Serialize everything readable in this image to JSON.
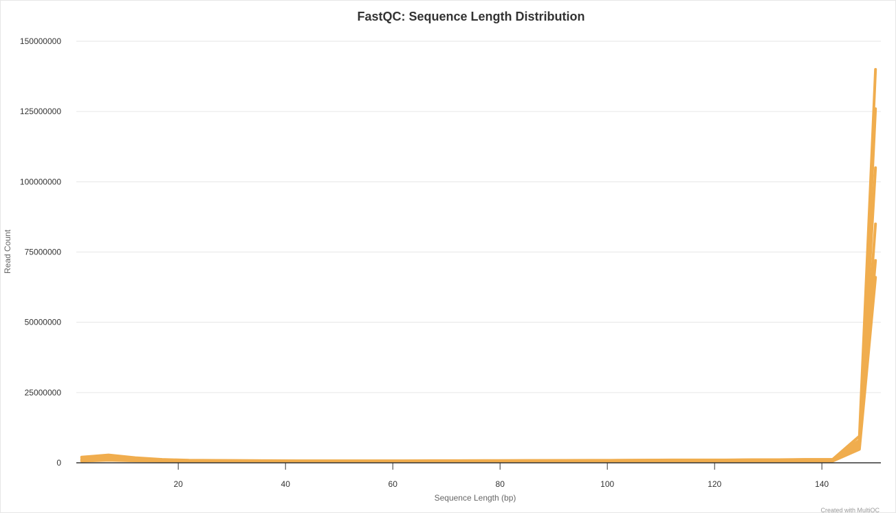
{
  "chart_data": {
    "type": "line",
    "title": "FastQC: Sequence Length Distribution",
    "xlabel": "Sequence Length (bp)",
    "ylabel": "Read Count",
    "xlim": [
      1,
      151
    ],
    "ylim": [
      0,
      150000000
    ],
    "x_ticks": [
      20,
      40,
      60,
      80,
      100,
      120,
      140
    ],
    "y_ticks": [
      0,
      25000000,
      50000000,
      75000000,
      100000000,
      125000000,
      150000000
    ],
    "grid": true,
    "line_color": "#f0ad4e",
    "credit": "Created with MultiQC",
    "x": [
      2,
      7,
      12,
      17,
      22,
      27,
      32,
      37,
      42,
      47,
      52,
      57,
      62,
      67,
      72,
      77,
      82,
      87,
      92,
      97,
      102,
      107,
      112,
      117,
      122,
      127,
      132,
      137,
      142,
      147,
      150
    ],
    "series": [
      {
        "values": [
          2000000,
          2800000,
          1800000,
          1200000,
          900000,
          850000,
          800000,
          750000,
          700000,
          700000,
          700000,
          700000,
          720000,
          750000,
          750000,
          780000,
          800000,
          820000,
          850000,
          880000,
          900000,
          950000,
          1000000,
          1000000,
          1000000,
          1100000,
          1100000,
          1200000,
          1200000,
          9500000,
          140000000
        ]
      },
      {
        "values": [
          1800000,
          2500000,
          1600000,
          1100000,
          850000,
          800000,
          750000,
          700000,
          650000,
          650000,
          650000,
          650000,
          680000,
          700000,
          700000,
          720000,
          750000,
          780000,
          800000,
          830000,
          850000,
          900000,
          950000,
          950000,
          950000,
          1050000,
          1050000,
          1150000,
          1150000,
          8000000,
          126000000
        ]
      },
      {
        "values": [
          1200000,
          1800000,
          1200000,
          900000,
          700000,
          650000,
          600000,
          580000,
          550000,
          550000,
          550000,
          560000,
          580000,
          600000,
          600000,
          620000,
          650000,
          680000,
          700000,
          720000,
          750000,
          780000,
          800000,
          800000,
          820000,
          850000,
          880000,
          900000,
          950000,
          7000000,
          105000000
        ]
      },
      {
        "values": [
          900000,
          1400000,
          1000000,
          800000,
          600000,
          560000,
          520000,
          500000,
          480000,
          480000,
          480000,
          490000,
          500000,
          520000,
          520000,
          540000,
          560000,
          580000,
          600000,
          620000,
          640000,
          660000,
          680000,
          700000,
          700000,
          720000,
          750000,
          780000,
          800000,
          6000000,
          85000000
        ]
      },
      {
        "values": [
          700000,
          1100000,
          850000,
          700000,
          520000,
          480000,
          450000,
          430000,
          420000,
          420000,
          420000,
          430000,
          440000,
          450000,
          450000,
          470000,
          480000,
          500000,
          520000,
          540000,
          550000,
          570000,
          590000,
          600000,
          600000,
          620000,
          650000,
          670000,
          700000,
          5500000,
          72000000
        ]
      },
      {
        "values": [
          600000,
          900000,
          700000,
          600000,
          450000,
          420000,
          400000,
          380000,
          370000,
          370000,
          370000,
          380000,
          390000,
          400000,
          400000,
          420000,
          430000,
          450000,
          460000,
          480000,
          500000,
          520000,
          530000,
          540000,
          550000,
          560000,
          580000,
          600000,
          620000,
          4800000,
          66000000
        ]
      }
    ]
  }
}
